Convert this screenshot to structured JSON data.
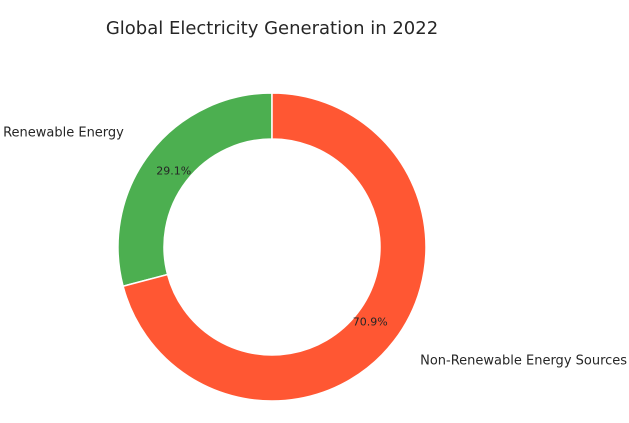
{
  "chart_data": {
    "type": "pie",
    "title": "Global Electricity Generation in 2022",
    "donut": true,
    "start_angle": "top, counter-clockwise",
    "legend": "none",
    "slices": [
      {
        "label": "Renewable Energy",
        "value": 29.1,
        "pct_label": "29.1%",
        "color": "#4CAF50"
      },
      {
        "label": "Non-Renewable Energy Sources",
        "value": 70.9,
        "pct_label": "70.9%",
        "color": "#FF5733"
      }
    ]
  }
}
